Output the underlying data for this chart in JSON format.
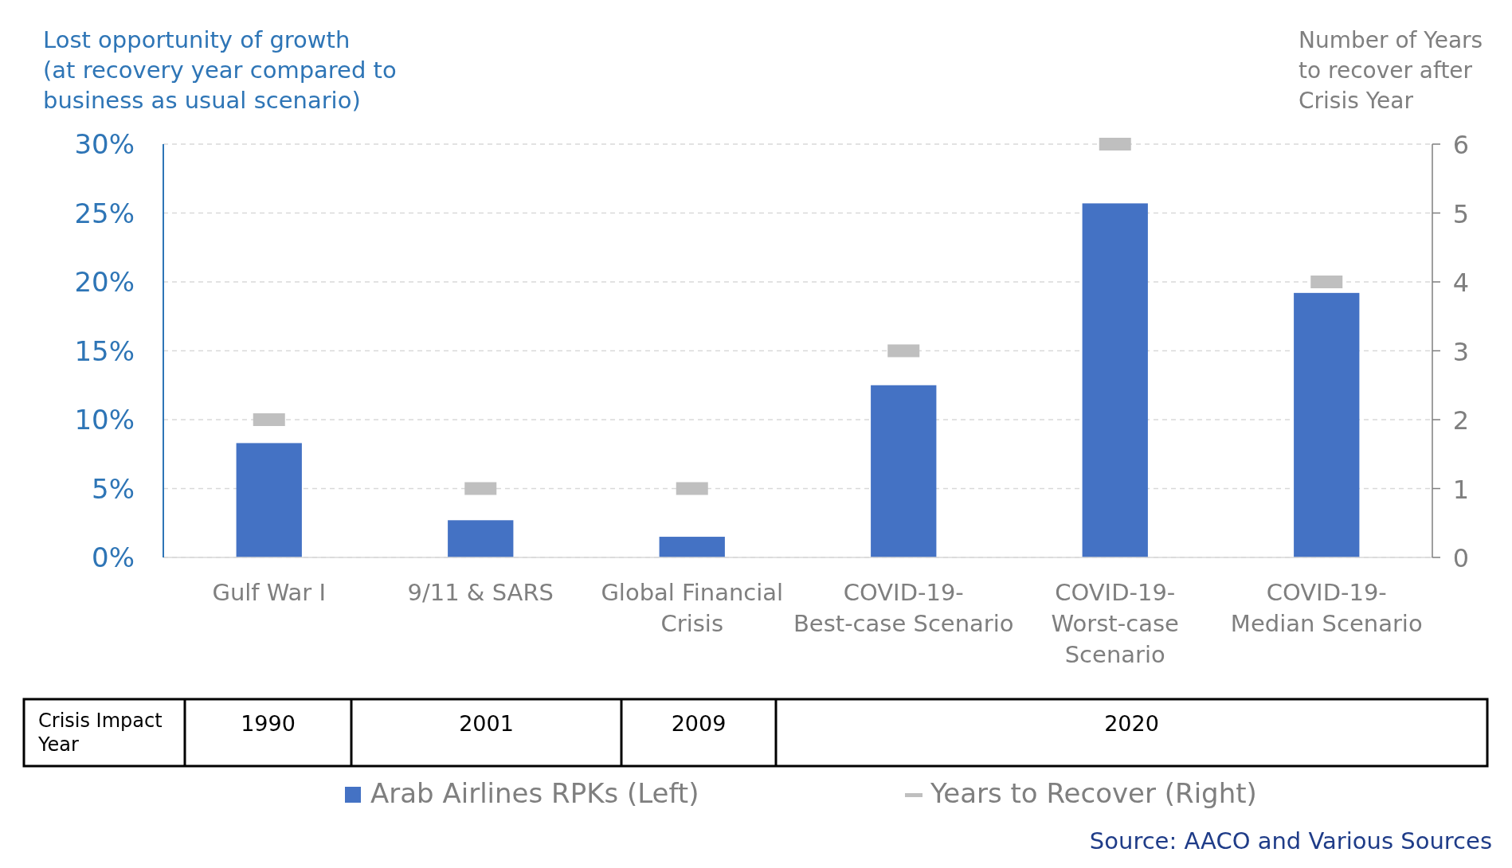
{
  "chart_data": {
    "type": "bar",
    "ylabel": "Lost opportunity of growth\n(at recovery year compared to\nbusiness as usual scenario)",
    "y2label": "Number of Years\nto recover after\nCrisis Year",
    "categories": [
      "Gulf War I",
      "9/11 & SARS",
      "Global Financial\nCrisis",
      "COVID-19-\nBest-case Scenario",
      "COVID-19-\nWorst-case\nScenario",
      "COVID-19-\nMedian Scenario"
    ],
    "series": [
      {
        "name": "Arab Airlines RPKs (Left)",
        "color": "#4472c4",
        "values": [
          8.3,
          2.7,
          1.5,
          12.5,
          25.7,
          19.2
        ]
      },
      {
        "name": "Years to Recover (Right)",
        "type": "scatter",
        "axis": "y2",
        "color": "#bfbfbf",
        "values": [
          2,
          1,
          1,
          3,
          6,
          4
        ]
      }
    ],
    "ylim": [
      0,
      30
    ],
    "yticks": [
      {
        "value": 0,
        "label": "0%"
      },
      {
        "value": 5,
        "label": "5%"
      },
      {
        "value": 10,
        "label": "10%"
      },
      {
        "value": 15,
        "label": "15%"
      },
      {
        "value": 20,
        "label": "20%"
      },
      {
        "value": 25,
        "label": "25%"
      },
      {
        "value": 30,
        "label": "30%"
      }
    ],
    "y2lim": [
      0,
      6
    ],
    "y2ticks": [
      0,
      1,
      2,
      3,
      4,
      5,
      6
    ],
    "grid": "y",
    "legend": "bottom",
    "annotations": [
      "Crisis Impact\nYear",
      "1990",
      "2001",
      "2009",
      "2020",
      "Source: AACO and Various Sources"
    ]
  }
}
